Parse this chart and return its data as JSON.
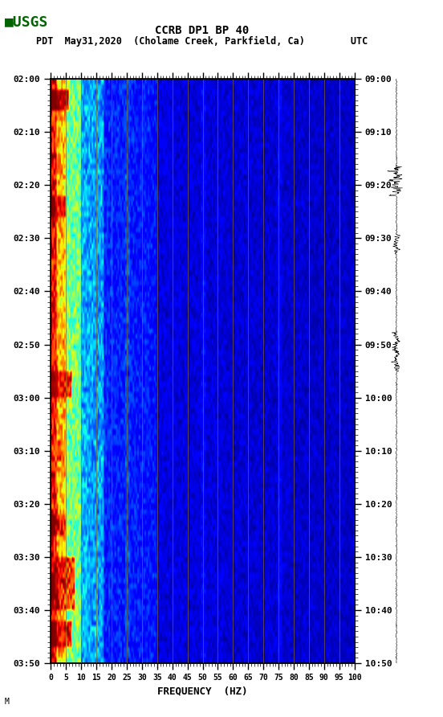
{
  "title_line1": "CCRB DP1 BP 40",
  "title_line2": "PDT  May31,2020  (Cholame Creek, Parkfield, Ca)        UTC",
  "xlabel": "FREQUENCY  (HZ)",
  "freq_ticks": [
    0,
    5,
    10,
    15,
    20,
    25,
    30,
    35,
    40,
    45,
    50,
    55,
    60,
    65,
    70,
    75,
    80,
    85,
    90,
    95,
    100
  ],
  "time_labels_left": [
    "02:00",
    "02:10",
    "02:20",
    "02:30",
    "02:40",
    "02:50",
    "03:00",
    "03:10",
    "03:20",
    "03:30",
    "03:40",
    "03:50"
  ],
  "time_labels_right": [
    "09:00",
    "09:10",
    "09:20",
    "09:30",
    "09:40",
    "09:50",
    "10:00",
    "10:10",
    "10:20",
    "10:30",
    "10:40",
    "10:50"
  ],
  "n_time_steps": 110,
  "n_freq_bins": 200,
  "grid_color": "#8B6914",
  "usgs_color": "#006400",
  "fig_bg": "#ffffff"
}
